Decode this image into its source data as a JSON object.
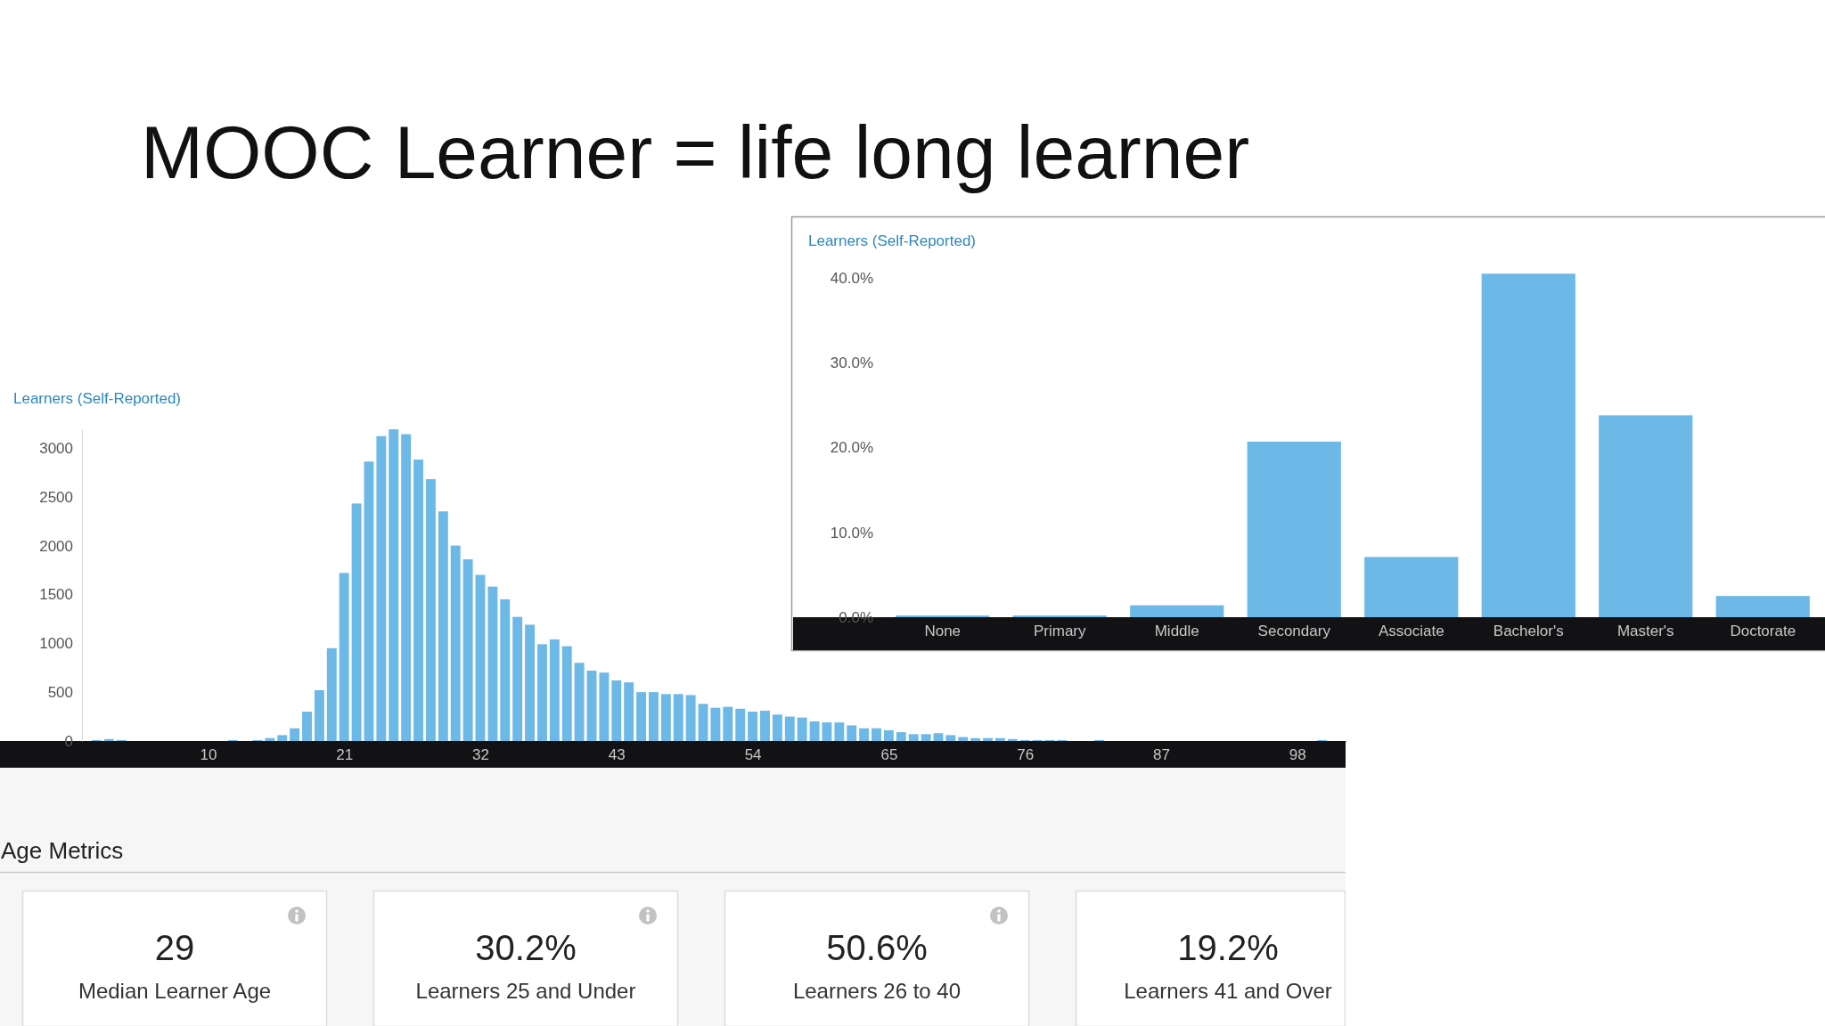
{
  "chart_data": [
    {
      "type": "histogram",
      "title": "MOOC Learner = life long learner",
      "ylabel": "Learners (Self-Reported)",
      "color": "#6cb8e6",
      "bins": [
        0.5,
        1.5,
        2.5,
        3.5,
        4.5,
        5.5,
        6.5,
        7.5,
        8.5,
        9.5,
        10.5,
        11.5,
        12.5,
        13.5,
        14.5,
        15.5,
        16.5,
        17.5,
        18.5,
        19.5,
        20.5,
        21.5,
        22.5,
        23.5,
        24.5,
        25.5,
        26.5,
        27.5,
        28.5,
        29.5,
        30.5,
        31.5,
        32.5,
        33.5,
        34.5,
        35.5,
        36.5,
        37.5,
        38.5,
        39.5,
        40.5,
        41.5,
        42.5,
        43.5,
        44.5,
        45.5,
        46.5,
        47.5,
        48.5,
        49.5,
        50.5,
        51.5,
        52.5,
        53.5,
        54.5,
        55.5,
        56.5,
        57.5,
        58.5,
        59.5,
        60.5,
        61.5,
        62.5,
        63.5,
        64.5,
        65.5,
        66.5,
        67.5,
        68.5,
        69.5,
        70.5,
        71.5,
        72.5,
        73.5,
        74.5,
        75.5,
        76.5,
        77.5,
        78.5,
        79.5,
        80.5,
        81.5,
        82.5,
        83.5,
        84.5,
        85.5,
        86.5,
        87.5,
        88.5,
        89.5,
        90.5,
        91.5,
        92.5,
        93.5,
        94.5,
        95.5,
        96.5,
        97.5,
        98.5,
        99.5,
        100.5
      ],
      "values": [
        10,
        20,
        10,
        0,
        0,
        0,
        0,
        0,
        0,
        0,
        0,
        10,
        0,
        10,
        30,
        60,
        130,
        300,
        520,
        950,
        1720,
        2430,
        2860,
        3120,
        3190,
        3140,
        2880,
        2680,
        2350,
        2000,
        1860,
        1700,
        1580,
        1450,
        1270,
        1190,
        990,
        1040,
        970,
        800,
        720,
        700,
        620,
        600,
        500,
        500,
        480,
        480,
        470,
        380,
        340,
        350,
        330,
        300,
        310,
        270,
        250,
        240,
        200,
        190,
        190,
        160,
        130,
        130,
        110,
        90,
        70,
        70,
        80,
        60,
        40,
        30,
        30,
        30,
        20,
        10,
        10,
        10,
        10,
        0,
        0,
        10,
        0,
        0,
        0,
        0,
        0,
        0,
        0,
        0,
        0,
        0,
        0,
        0,
        0,
        0,
        0,
        0,
        0,
        10
      ],
      "xlim": [
        -6.8,
        101.9
      ],
      "xticks": [
        10,
        21,
        32,
        43,
        54,
        65,
        76,
        87,
        98
      ],
      "ylim": [
        0,
        3190
      ],
      "yticks": [
        0,
        500,
        1000,
        1500,
        2000,
        2500,
        3000
      ]
    },
    {
      "type": "bar",
      "ylabel": "Learners (Self-Reported)",
      "color": "#6cb8e6",
      "categories": [
        "None",
        "Primary",
        "Middle",
        "Secondary",
        "Associate",
        "Bachelor's",
        "Master's",
        "Doctorate"
      ],
      "values": [
        0.2,
        0.2,
        1.4,
        20.7,
        7.1,
        40.5,
        23.8,
        2.5
      ],
      "ylim": [
        0,
        47.2
      ],
      "yticks": [
        {
          "value": 0,
          "label": "0.0%"
        },
        {
          "value": 10,
          "label": "10.0%"
        },
        {
          "value": 20,
          "label": "20.0%"
        },
        {
          "value": 30,
          "label": "30.0%"
        },
        {
          "value": 40,
          "label": "40.0%"
        }
      ]
    },
    {
      "type": "other",
      "title": "Age Metrics",
      "annotations": [
        "29",
        "Median Learner Age",
        "30.2%",
        "Learners 25 and Under",
        "50.6%",
        "Learners 26 to 40",
        "19.2%",
        "Learners 41 and Over"
      ]
    }
  ]
}
